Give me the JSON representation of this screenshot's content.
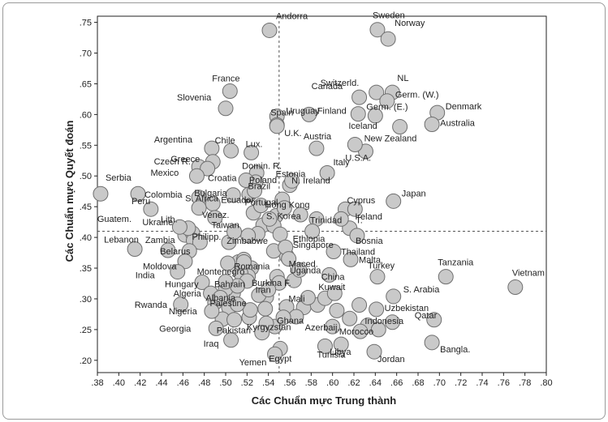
{
  "chart_data": {
    "type": "scatter",
    "xlabel": "Các Chuẩn mực Trung thành",
    "ylabel": "Các Chuẩn mực Quyết đoán",
    "xlim": [
      0.38,
      0.8
    ],
    "ylim": [
      0.18,
      0.76
    ],
    "x_ticks": [
      ".38",
      ".40",
      ".42",
      ".44",
      ".46",
      ".48",
      ".50",
      ".52",
      ".54",
      ".56",
      ".58",
      ".60",
      ".62",
      ".64",
      ".66",
      ".68",
      ".70",
      ".72",
      ".74",
      ".76",
      ".78",
      ".80"
    ],
    "y_ticks": [
      ".20",
      ".25",
      ".30",
      ".35",
      ".40",
      ".45",
      ".50",
      ".55",
      ".60",
      ".65",
      ".70",
      ".75"
    ],
    "reference_lines": {
      "x": 0.55,
      "y": 0.41
    },
    "grid": false,
    "colors": {
      "marker_fill": "#c9c9c9",
      "marker_stroke": "#6e6e6e",
      "reference_line": "#555555"
    },
    "labeled_points": [
      {
        "label": "Andorra",
        "x": 0.541,
        "y": 0.737
      },
      {
        "label": "Sweden",
        "x": 0.642,
        "y": 0.738
      },
      {
        "label": "Norway",
        "x": 0.652,
        "y": 0.723
      },
      {
        "label": "France",
        "x": 0.504,
        "y": 0.638
      },
      {
        "label": "Slovenia",
        "x": 0.5,
        "y": 0.61
      },
      {
        "label": "Uruguay",
        "x": 0.548,
        "y": 0.597
      },
      {
        "label": "Spain",
        "x": 0.548,
        "y": 0.583
      },
      {
        "label": "Finland",
        "x": 0.578,
        "y": 0.6
      },
      {
        "label": "Switzerld.",
        "x": 0.625,
        "y": 0.628
      },
      {
        "label": "NL",
        "x": 0.656,
        "y": 0.636
      },
      {
        "label": "Canada",
        "x": 0.641,
        "y": 0.636
      },
      {
        "label": "Germ. (W.)",
        "x": 0.651,
        "y": 0.622
      },
      {
        "label": "Germ. (E.)",
        "x": 0.624,
        "y": 0.601
      },
      {
        "label": "Denmark",
        "x": 0.698,
        "y": 0.603
      },
      {
        "label": "Australia",
        "x": 0.693,
        "y": 0.584
      },
      {
        "label": "Iceland",
        "x": 0.64,
        "y": 0.598
      },
      {
        "label": "New Zealand",
        "x": 0.663,
        "y": 0.58
      },
      {
        "label": "U.K.",
        "x": 0.548,
        "y": 0.581
      },
      {
        "label": "Austria",
        "x": 0.585,
        "y": 0.545
      },
      {
        "label": "Italy",
        "x": 0.631,
        "y": 0.54
      },
      {
        "label": "U.S.A.",
        "x": 0.621,
        "y": 0.551
      },
      {
        "label": "Argentina",
        "x": 0.487,
        "y": 0.545
      },
      {
        "label": "Chile",
        "x": 0.505,
        "y": 0.541
      },
      {
        "label": "Lux.",
        "x": 0.524,
        "y": 0.538
      },
      {
        "label": "Greece",
        "x": 0.488,
        "y": 0.523
      },
      {
        "label": "Czech R.",
        "x": 0.483,
        "y": 0.512
      },
      {
        "label": "Mexico",
        "x": 0.473,
        "y": 0.5
      },
      {
        "label": "Domin. R.",
        "x": 0.529,
        "y": 0.505
      },
      {
        "label": "Poland",
        "x": 0.528,
        "y": 0.49
      },
      {
        "label": "Croatia",
        "x": 0.519,
        "y": 0.493
      },
      {
        "label": "Estonia",
        "x": 0.562,
        "y": 0.492
      },
      {
        "label": "Brazil",
        "x": 0.527,
        "y": 0.476
      },
      {
        "label": "Colombia",
        "x": 0.475,
        "y": 0.465
      },
      {
        "label": "Bulgaria",
        "x": 0.507,
        "y": 0.469
      },
      {
        "label": "N. Ireland",
        "x": 0.595,
        "y": 0.505
      },
      {
        "label": "Japan",
        "x": 0.657,
        "y": 0.459
      },
      {
        "label": "Serbia",
        "x": 0.383,
        "y": 0.471
      },
      {
        "label": "Peru",
        "x": 0.418,
        "y": 0.471
      },
      {
        "label": "Guatem.",
        "x": 0.43,
        "y": 0.446
      },
      {
        "label": "S. Africa",
        "x": 0.475,
        "y": 0.448
      },
      {
        "label": "Ecuador",
        "x": 0.488,
        "y": 0.455
      },
      {
        "label": "Portugal",
        "x": 0.533,
        "y": 0.452
      },
      {
        "label": "Hong Kong",
        "x": 0.555,
        "y": 0.448
      },
      {
        "label": "Cyprus",
        "x": 0.612,
        "y": 0.446
      },
      {
        "label": "Venez.",
        "x": 0.49,
        "y": 0.432
      },
      {
        "label": "S. Korea",
        "x": 0.541,
        "y": 0.43
      },
      {
        "label": "Lith.",
        "x": 0.465,
        "y": 0.415
      },
      {
        "label": "Taiwan",
        "x": 0.508,
        "y": 0.409
      },
      {
        "label": "Trinidad",
        "x": 0.585,
        "y": 0.43
      },
      {
        "label": "T.",
        "x": 0.608,
        "y": 0.43
      },
      {
        "label": "Ireland",
        "x": 0.621,
        "y": 0.446
      },
      {
        "label": "Ethiopia",
        "x": 0.581,
        "y": 0.41
      },
      {
        "label": "Bosnia",
        "x": 0.623,
        "y": 0.403
      },
      {
        "label": "Ukraine",
        "x": 0.457,
        "y": 0.417
      },
      {
        "label": "Lebanon",
        "x": 0.415,
        "y": 0.381
      },
      {
        "label": "Zambia",
        "x": 0.446,
        "y": 0.379
      },
      {
        "label": "Philipp.",
        "x": 0.476,
        "y": 0.392
      },
      {
        "label": "Belarus",
        "x": 0.466,
        "y": 0.378
      },
      {
        "label": "Zimbabwe",
        "x": 0.545,
        "y": 0.378
      },
      {
        "label": "Singapore",
        "x": 0.556,
        "y": 0.384
      },
      {
        "label": "Thailand",
        "x": 0.601,
        "y": 0.377
      },
      {
        "label": "Romania",
        "x": 0.517,
        "y": 0.36
      },
      {
        "label": "Maced.",
        "x": 0.559,
        "y": 0.365
      },
      {
        "label": "Moldova",
        "x": 0.462,
        "y": 0.361
      },
      {
        "label": "Montenegro",
        "x": 0.502,
        "y": 0.358
      },
      {
        "label": "Malta",
        "x": 0.617,
        "y": 0.364
      },
      {
        "label": "India",
        "x": 0.455,
        "y": 0.344
      },
      {
        "label": "Uganda",
        "x": 0.569,
        "y": 0.347
      },
      {
        "label": "China",
        "x": 0.597,
        "y": 0.339
      },
      {
        "label": "Turkey",
        "x": 0.642,
        "y": 0.336
      },
      {
        "label": "Tanzania",
        "x": 0.706,
        "y": 0.336
      },
      {
        "label": "Vietnam",
        "x": 0.771,
        "y": 0.319
      },
      {
        "label": "Hungary",
        "x": 0.478,
        "y": 0.327
      },
      {
        "label": "Bahrain",
        "x": 0.5,
        "y": 0.328
      },
      {
        "label": "Burkina F.",
        "x": 0.55,
        "y": 0.326
      },
      {
        "label": "Iran",
        "x": 0.54,
        "y": 0.315
      },
      {
        "label": "S. Arabia",
        "x": 0.657,
        "y": 0.304
      },
      {
        "label": "Algeria",
        "x": 0.486,
        "y": 0.309
      },
      {
        "label": "Albania",
        "x": 0.495,
        "y": 0.302
      },
      {
        "label": "Mali",
        "x": 0.577,
        "y": 0.302
      },
      {
        "label": "Kuwait",
        "x": 0.602,
        "y": 0.309
      },
      {
        "label": "Rwanda",
        "x": 0.458,
        "y": 0.291
      },
      {
        "label": "Palestine",
        "x": 0.511,
        "y": 0.291
      },
      {
        "label": "Uzbekistan",
        "x": 0.641,
        "y": 0.283
      },
      {
        "label": "Qatar",
        "x": 0.695,
        "y": 0.266
      },
      {
        "label": "Nigeria",
        "x": 0.487,
        "y": 0.28
      },
      {
        "label": "Ghana",
        "x": 0.554,
        "y": 0.27
      },
      {
        "label": "Indonesia",
        "x": 0.656,
        "y": 0.262
      },
      {
        "label": "Morocco",
        "x": 0.626,
        "y": 0.247
      },
      {
        "label": "Kyrgyzstan",
        "x": 0.538,
        "y": 0.26
      },
      {
        "label": "Azerbaij.",
        "x": 0.6,
        "y": 0.255
      },
      {
        "label": "Georgia",
        "x": 0.491,
        "y": 0.252
      },
      {
        "label": "Pakistan",
        "x": 0.534,
        "y": 0.245
      },
      {
        "label": "Iraq",
        "x": 0.505,
        "y": 0.233
      },
      {
        "label": "Libya",
        "x": 0.608,
        "y": 0.226
      },
      {
        "label": "Tunisia",
        "x": 0.593,
        "y": 0.223
      },
      {
        "label": "Bangla.",
        "x": 0.693,
        "y": 0.229
      },
      {
        "label": "Egypt",
        "x": 0.551,
        "y": 0.219
      },
      {
        "label": "Jordan",
        "x": 0.639,
        "y": 0.214
      },
      {
        "label": "Yemen",
        "x": 0.546,
        "y": 0.21
      }
    ],
    "unlabeled_points": [
      {
        "x": 0.475,
        "y": 0.515
      },
      {
        "x": 0.527,
        "y": 0.485
      },
      {
        "x": 0.522,
        "y": 0.47
      },
      {
        "x": 0.526,
        "y": 0.44
      },
      {
        "x": 0.547,
        "y": 0.435
      },
      {
        "x": 0.535,
        "y": 0.42
      },
      {
        "x": 0.545,
        "y": 0.419
      },
      {
        "x": 0.53,
        "y": 0.406
      },
      {
        "x": 0.521,
        "y": 0.403
      },
      {
        "x": 0.462,
        "y": 0.404
      },
      {
        "x": 0.469,
        "y": 0.407
      },
      {
        "x": 0.47,
        "y": 0.395
      },
      {
        "x": 0.503,
        "y": 0.392
      },
      {
        "x": 0.551,
        "y": 0.405
      },
      {
        "x": 0.57,
        "y": 0.437
      },
      {
        "x": 0.557,
        "y": 0.37
      },
      {
        "x": 0.524,
        "y": 0.35
      },
      {
        "x": 0.521,
        "y": 0.337
      },
      {
        "x": 0.514,
        "y": 0.342
      },
      {
        "x": 0.512,
        "y": 0.36
      },
      {
        "x": 0.517,
        "y": 0.364
      },
      {
        "x": 0.52,
        "y": 0.329
      },
      {
        "x": 0.548,
        "y": 0.336
      },
      {
        "x": 0.564,
        "y": 0.33
      },
      {
        "x": 0.538,
        "y": 0.303
      },
      {
        "x": 0.531,
        "y": 0.306
      },
      {
        "x": 0.507,
        "y": 0.309
      },
      {
        "x": 0.503,
        "y": 0.286
      },
      {
        "x": 0.537,
        "y": 0.284
      },
      {
        "x": 0.573,
        "y": 0.286
      },
      {
        "x": 0.586,
        "y": 0.29
      },
      {
        "x": 0.593,
        "y": 0.301
      },
      {
        "x": 0.604,
        "y": 0.281
      },
      {
        "x": 0.625,
        "y": 0.29
      },
      {
        "x": 0.616,
        "y": 0.268
      },
      {
        "x": 0.633,
        "y": 0.257
      },
      {
        "x": 0.643,
        "y": 0.25
      },
      {
        "x": 0.546,
        "y": 0.255
      },
      {
        "x": 0.522,
        "y": 0.27
      },
      {
        "x": 0.497,
        "y": 0.267
      },
      {
        "x": 0.508,
        "y": 0.266
      },
      {
        "x": 0.523,
        "y": 0.282
      },
      {
        "x": 0.557,
        "y": 0.287
      },
      {
        "x": 0.566,
        "y": 0.271
      },
      {
        "x": 0.49,
        "y": 0.294
      },
      {
        "x": 0.5,
        "y": 0.316
      },
      {
        "x": 0.511,
        "y": 0.321
      },
      {
        "x": 0.56,
        "y": 0.485
      },
      {
        "x": 0.553,
        "y": 0.462
      },
      {
        "x": 0.616,
        "y": 0.415
      }
    ]
  }
}
